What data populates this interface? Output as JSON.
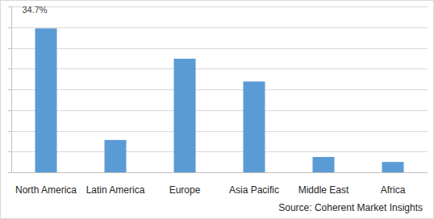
{
  "chart_data": {
    "type": "bar",
    "categories": [
      "North America",
      "Latin America",
      "Europe",
      "Asia Pacific",
      "Middle East",
      "Africa"
    ],
    "values": [
      34.7,
      7.8,
      27.4,
      21.9,
      3.7,
      2.5
    ],
    "value_labels": [
      "34.7%",
      null,
      null,
      null,
      null,
      null
    ],
    "data_labels": true,
    "color": "#5b9bd5",
    "ylim": [
      0,
      40
    ],
    "yticks": [
      0,
      5,
      10,
      15,
      20,
      25,
      30,
      35,
      40
    ],
    "grid": true,
    "tick_labels": "x",
    "source": "Source: Coherent Market Insights"
  }
}
